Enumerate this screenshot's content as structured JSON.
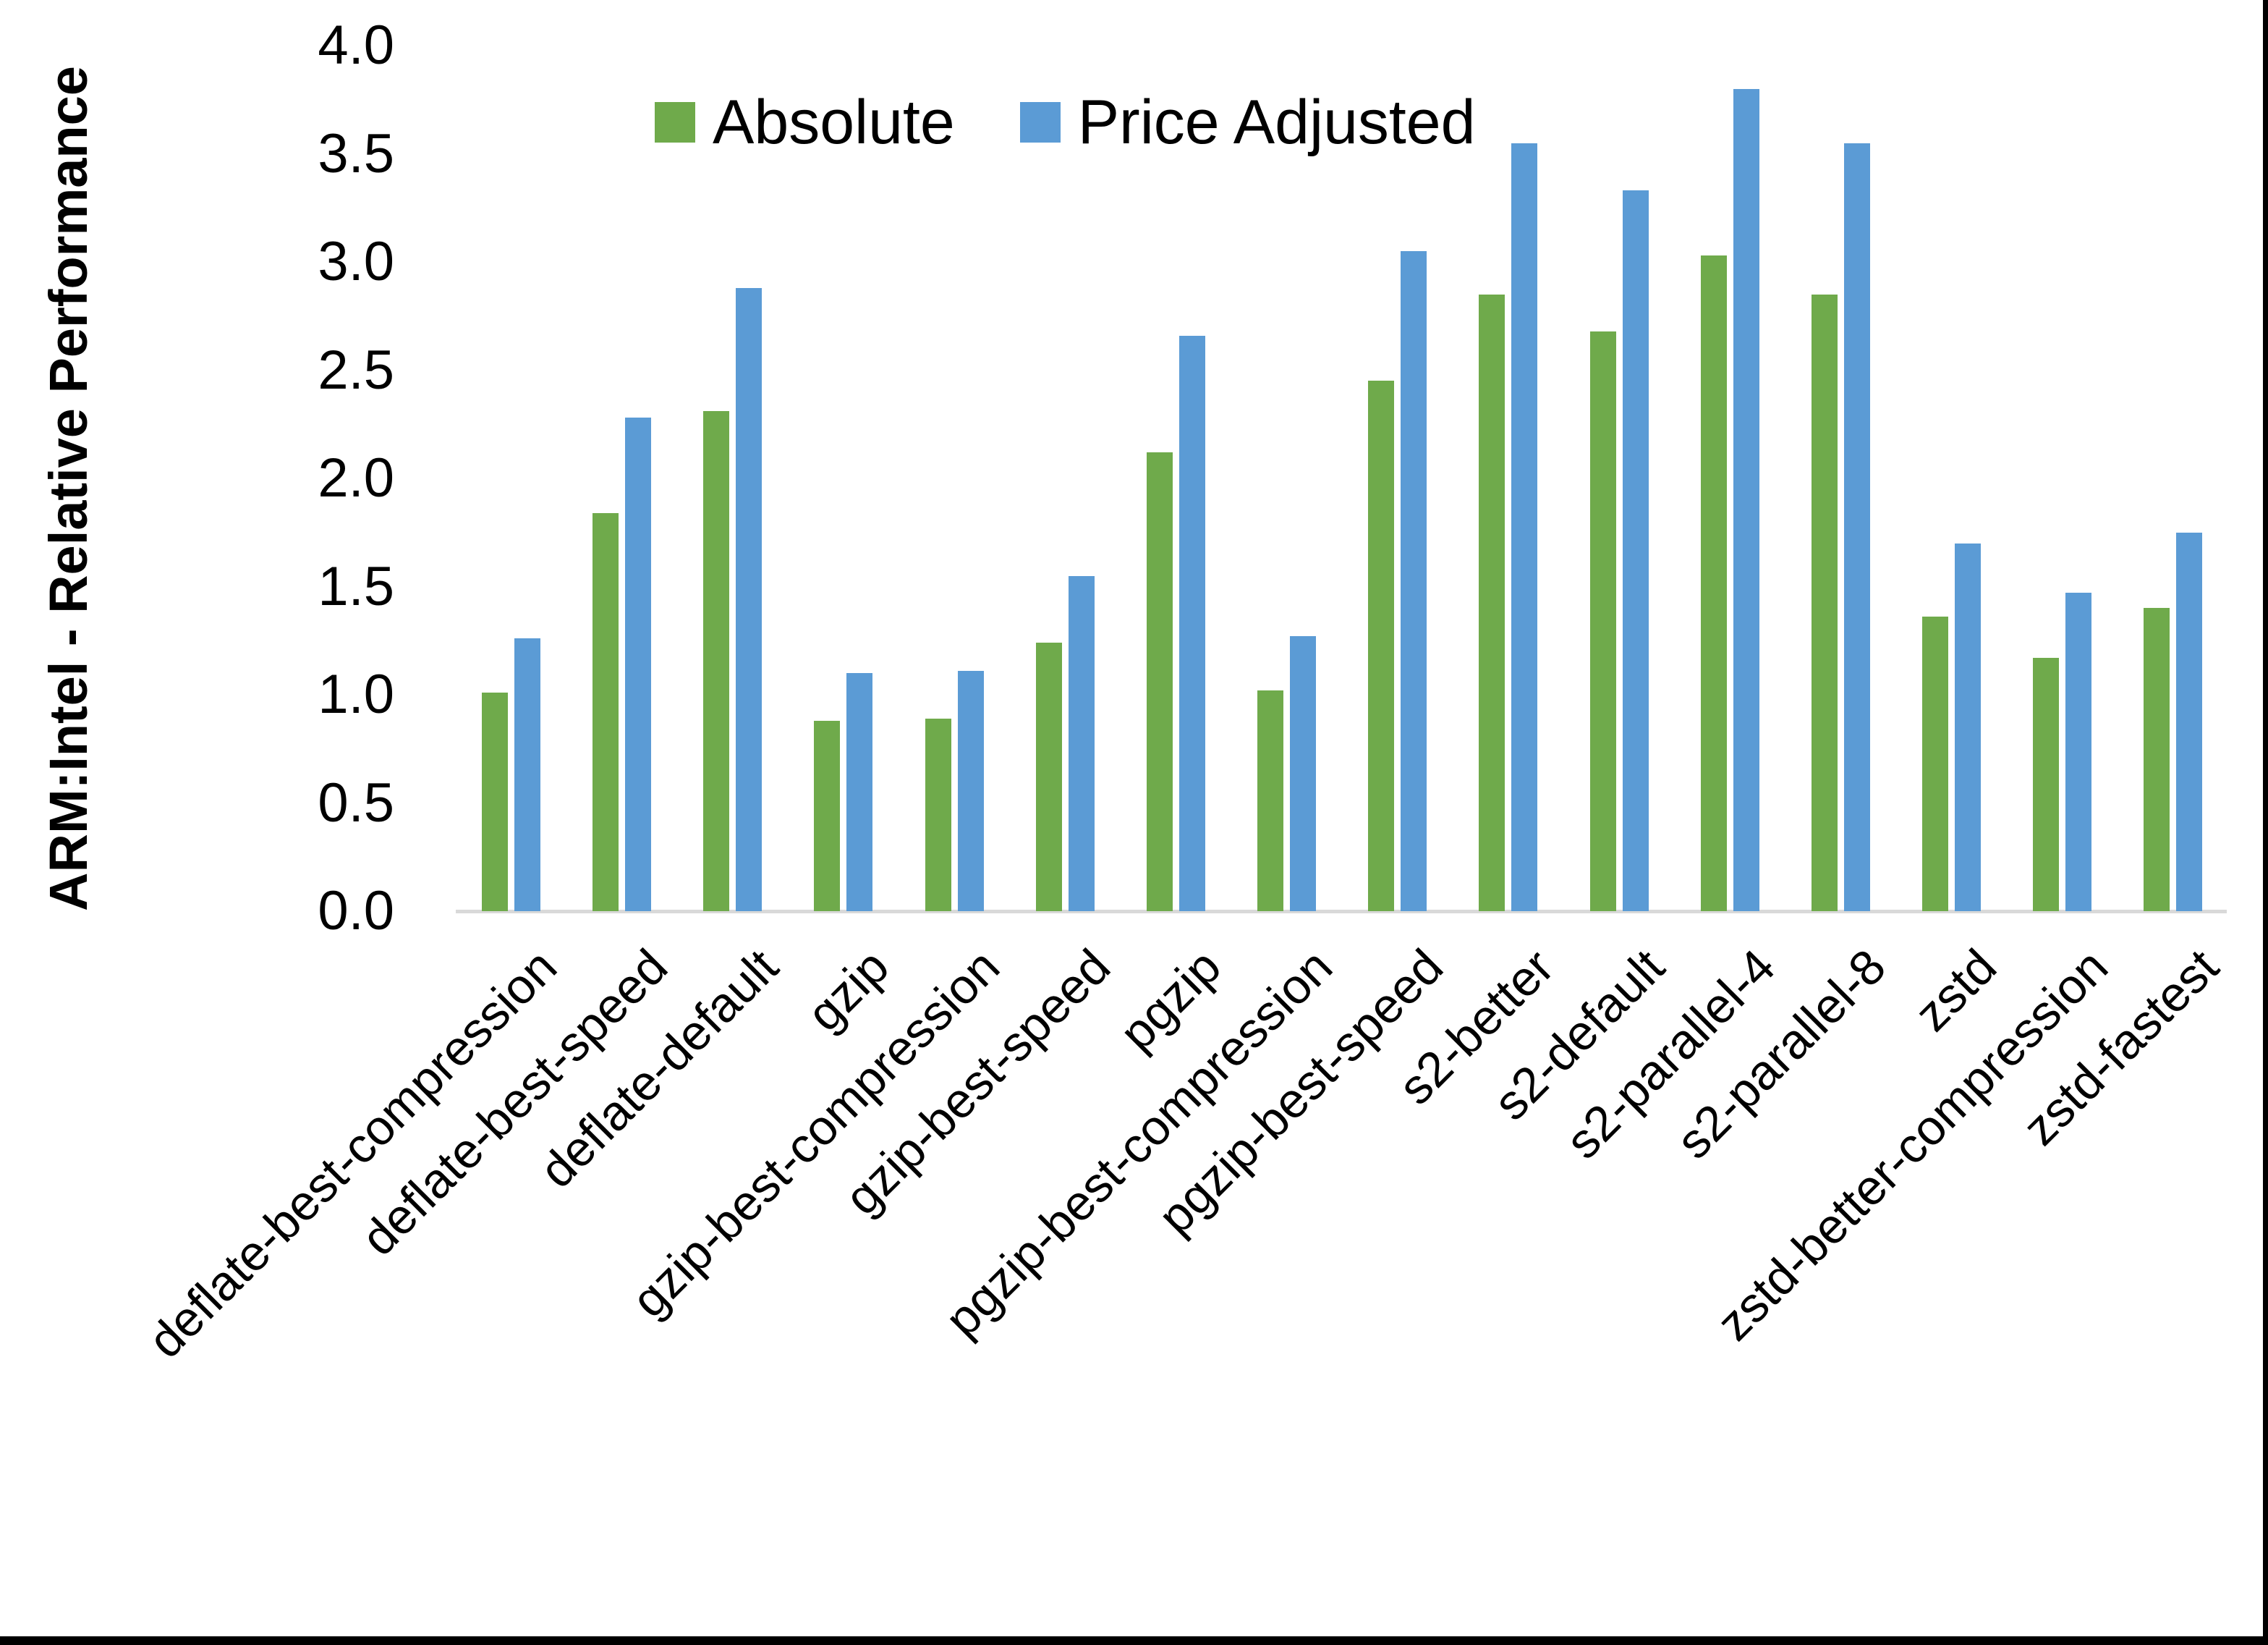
{
  "chart_data": {
    "type": "bar",
    "title": "",
    "xlabel": "",
    "ylabel": "ARM:Intel - Relative Performance",
    "ylim": [
      0.0,
      4.0
    ],
    "ytick_step": 0.5,
    "yticks": [
      "4.0",
      "3.5",
      "3.0",
      "2.5",
      "2.0",
      "1.5",
      "1.0",
      "0.5",
      "0.0"
    ],
    "grid": false,
    "legend_position": "top-center",
    "categories": [
      "deflate-best-compression",
      "deflate-best-speed",
      "deflate-default",
      "gzip",
      "gzip-best-compression",
      "gzip-best-speed",
      "pgzip",
      "pgzip-best-compression",
      "pgzip-best-speed",
      "s2-better",
      "s2-default",
      "s2-parallel-4",
      "s2-parallel-8",
      "zstd",
      "zstd-better-compression",
      "zstd-fastest"
    ],
    "series": [
      {
        "name": "Absolute",
        "color": "#6faa4b",
        "values": [
          1.01,
          1.84,
          2.31,
          0.88,
          0.89,
          1.24,
          2.12,
          1.02,
          2.45,
          2.85,
          2.68,
          3.03,
          2.85,
          1.36,
          1.17,
          1.4
        ]
      },
      {
        "name": "Price Adjusted",
        "color": "#5b9bd5",
        "values": [
          1.26,
          2.28,
          2.88,
          1.1,
          1.11,
          1.55,
          2.66,
          1.27,
          3.05,
          3.55,
          3.33,
          3.8,
          3.55,
          1.7,
          1.47,
          1.75
        ]
      }
    ],
    "axis_line_color": "#d9d9d9",
    "text_color": "#000000"
  },
  "frame": {
    "right_edge_color": "#000000",
    "bottom_edge_color": "#000000"
  }
}
